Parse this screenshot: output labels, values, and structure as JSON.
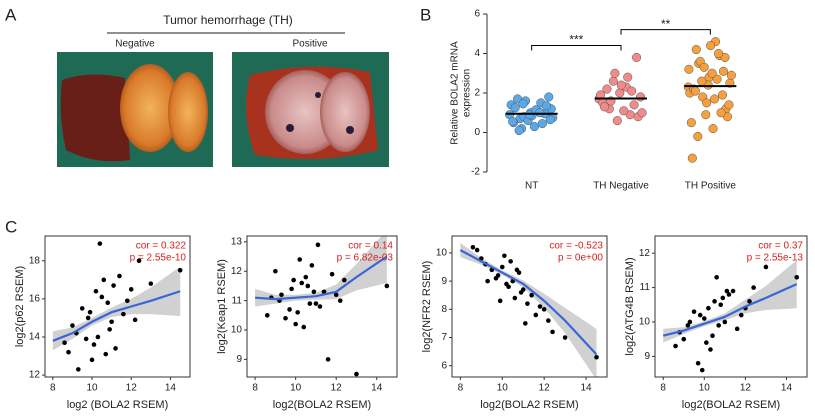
{
  "panels": {
    "a": {
      "label": "A",
      "title": "Tumor hemorrhage (TH)",
      "left": "Negative",
      "right": "Positive"
    },
    "b": {
      "label": "B"
    },
    "c": {
      "label": "C"
    }
  },
  "chart_data": [
    {
      "type": "dot",
      "categories": [
        "NT",
        "TH Negative",
        "TH Positive"
      ],
      "ylabel": [
        "Relative BOLA2 mRNA",
        "expression"
      ],
      "ylim": [
        -2,
        6
      ],
      "yticks": [
        -2,
        0,
        2,
        4,
        6
      ],
      "groups": [
        {
          "color": "#5ba8e8",
          "mean": 0.95,
          "values": [
            0.9,
            1.1,
            0.7,
            1.3,
            1.0,
            0.5,
            1.5,
            0.8,
            1.2,
            0.3,
            1.7,
            0.95,
            0.6,
            1.4,
            1.05,
            0.2,
            1.8,
            0.85,
            1.25,
            0.45,
            1.6,
            0.75,
            1.15,
            0.1,
            1.35,
            0.9,
            0.55,
            1.0,
            1.45,
            0.65
          ]
        },
        {
          "color": "#f28a8c",
          "mean": 1.72,
          "values": [
            1.7,
            2.3,
            1.2,
            3.8,
            2.0,
            1.5,
            0.9,
            2.6,
            1.8,
            1.1,
            2.2,
            1.4,
            0.6,
            1.9,
            2.8,
            1.6,
            0.8,
            2.4,
            1.3,
            2.1,
            3.0,
            1.0
          ]
        },
        {
          "color": "#f5a03c",
          "mean": 2.35,
          "values": [
            2.3,
            4.6,
            3.5,
            1.2,
            2.8,
            -1.3,
            3.9,
            1.8,
            2.5,
            0.2,
            4.2,
            3.1,
            1.5,
            2.0,
            2.7,
            3.6,
            0.8,
            4.4,
            2.2,
            1.0,
            3.3,
            2.9,
            1.7,
            -0.2,
            3.8,
            2.4,
            0.5,
            4.0,
            2.6,
            1.4,
            3.0,
            2.1,
            1.9,
            0.9,
            3.2
          ]
        }
      ],
      "comparisons": [
        {
          "from": 0,
          "to": 1,
          "text": "***"
        },
        {
          "from": 1,
          "to": 2,
          "text": "**"
        }
      ]
    },
    {
      "type": "scatter",
      "xlabel": "log2 (BOLA2 RSEM)",
      "ylabel": "log2(p62 RSEM)",
      "xlim": [
        7.6,
        15
      ],
      "xticks": [
        8,
        10,
        12,
        14
      ],
      "ylim": [
        11.9,
        19.3
      ],
      "yticks": [
        12,
        14,
        16,
        18
      ],
      "color": "#000000",
      "annotations": [
        "cor = 0.322",
        "p = 2.55e-10"
      ],
      "x": [
        9.2,
        9.8,
        10.1,
        10.5,
        11.0,
        11.4,
        8.8,
        9.5,
        10.3,
        10.8,
        11.2,
        12.0,
        9.0,
        10.0,
        10.6,
        11.6,
        12.4,
        9.7,
        10.2,
        10.9,
        8.6,
        11.8,
        13.0,
        14.5,
        10.4,
        9.3,
        11.1,
        10.7,
        12.2,
        9.9
      ],
      "values": [
        14.2,
        15.0,
        13.6,
        16.1,
        14.8,
        17.2,
        13.2,
        15.5,
        14.0,
        15.8,
        13.4,
        16.5,
        14.6,
        12.8,
        17.0,
        15.2,
        18.0,
        13.9,
        16.4,
        14.4,
        13.7,
        15.9,
        16.8,
        17.5,
        18.9,
        12.3,
        16.7,
        13.1,
        14.9,
        15.3
      ],
      "fit": {
        "color": "#3a65d6",
        "band_color": "#c9c9c9",
        "x": [
          8,
          9,
          10,
          11,
          12,
          13,
          14.5
        ],
        "values": [
          13.8,
          14.2,
          14.8,
          15.3,
          15.6,
          15.9,
          16.4
        ],
        "lower": [
          13.3,
          13.9,
          14.6,
          15.05,
          15.2,
          15.2,
          15.1
        ],
        "upper": [
          14.3,
          14.5,
          15.0,
          15.55,
          16.0,
          16.6,
          17.7
        ]
      }
    },
    {
      "type": "scatter",
      "xlabel": "log2(BOLA2 RSEM)",
      "ylabel": "log2(Keap1 RSEM)",
      "xlim": [
        7.6,
        15
      ],
      "xticks": [
        8,
        10,
        12,
        14
      ],
      "ylim": [
        8.4,
        13.2
      ],
      "yticks": [
        9,
        10,
        11,
        12,
        13
      ],
      "color": "#000000",
      "annotations": [
        "cor = 0.14",
        "p = 6.82e-03"
      ],
      "x": [
        9.2,
        9.8,
        10.1,
        10.5,
        11.0,
        11.4,
        8.8,
        9.5,
        10.3,
        10.8,
        11.2,
        12.0,
        9.0,
        10.0,
        10.6,
        11.6,
        12.4,
        9.7,
        10.2,
        10.9,
        8.6,
        11.8,
        13.0,
        14.5,
        10.4,
        9.3,
        11.1,
        10.7,
        12.2,
        9.9
      ],
      "values": [
        11.0,
        11.4,
        10.6,
        11.8,
        10.9,
        11.3,
        11.1,
        10.4,
        11.6,
        12.2,
        10.8,
        11.2,
        12.0,
        10.2,
        11.5,
        9.0,
        11.7,
        10.7,
        12.4,
        11.3,
        10.5,
        11.9,
        8.5,
        11.5,
        10.1,
        11.2,
        12.9,
        10.9,
        11.0,
        11.7
      ],
      "fit": {
        "color": "#3a65d6",
        "band_color": "#c9c9c9",
        "x": [
          8,
          9,
          10,
          11,
          12,
          13,
          14.5
        ],
        "values": [
          11.1,
          11.05,
          11.1,
          11.15,
          11.3,
          11.8,
          12.5
        ],
        "lower": [
          10.8,
          10.9,
          11.0,
          11.03,
          11.05,
          11.35,
          11.6
        ],
        "upper": [
          11.4,
          11.2,
          11.2,
          11.27,
          11.55,
          12.25,
          13.4
        ]
      }
    },
    {
      "type": "scatter",
      "xlabel": "log2(BOLA2 RSEM)",
      "ylabel": "log2(NFR2 RSEM)",
      "xlim": [
        7.6,
        15
      ],
      "xticks": [
        8,
        10,
        12,
        14
      ],
      "ylim": [
        5.6,
        10.6
      ],
      "yticks": [
        6,
        7,
        8,
        9,
        10
      ],
      "color": "#000000",
      "annotations": [
        "cor = -0.523",
        "p = 0e+00"
      ],
      "x": [
        9.2,
        9.8,
        10.1,
        10.5,
        11.0,
        11.4,
        8.8,
        9.5,
        10.3,
        10.8,
        11.2,
        12.0,
        9.0,
        10.0,
        10.6,
        11.6,
        12.4,
        9.7,
        10.2,
        10.9,
        8.6,
        11.8,
        13.0,
        14.5,
        10.4,
        9.3,
        11.1,
        10.7,
        12.2,
        9.9
      ],
      "values": [
        9.6,
        9.2,
        9.9,
        9.0,
        8.7,
        8.5,
        10.1,
        9.4,
        8.8,
        9.3,
        8.2,
        8.0,
        9.8,
        9.5,
        8.4,
        7.8,
        7.2,
        9.1,
        8.9,
        8.6,
        10.2,
        8.1,
        7.0,
        6.3,
        9.7,
        9.0,
        7.5,
        9.4,
        7.6,
        8.3
      ],
      "fit": {
        "color": "#3a65d6",
        "band_color": "#c9c9c9",
        "x": [
          8,
          9,
          10,
          11,
          12,
          13,
          14.5
        ],
        "values": [
          10.1,
          9.7,
          9.3,
          8.9,
          8.3,
          7.6,
          6.4
        ],
        "lower": [
          9.85,
          9.58,
          9.22,
          8.78,
          8.05,
          7.15,
          5.5
        ],
        "upper": [
          10.35,
          9.82,
          9.38,
          9.02,
          8.55,
          8.05,
          7.3
        ]
      }
    },
    {
      "type": "scatter",
      "xlabel": "log2(BOLA2 RSEM)",
      "ylabel": "log2(ATG4B RSEM)",
      "xlim": [
        7.6,
        15
      ],
      "xticks": [
        8,
        10,
        12,
        14
      ],
      "ylim": [
        8.4,
        12.5
      ],
      "yticks": [
        9,
        10,
        11,
        12
      ],
      "color": "#000000",
      "annotations": [
        "cor = 0.37",
        "p = 2.55e-13"
      ],
      "x": [
        9.2,
        9.8,
        10.1,
        10.5,
        11.0,
        11.4,
        8.8,
        9.5,
        10.3,
        10.8,
        11.2,
        12.0,
        9.0,
        10.0,
        10.6,
        11.6,
        12.4,
        9.7,
        10.2,
        10.9,
        8.6,
        11.8,
        13.0,
        14.5,
        10.4,
        9.3,
        11.1,
        10.7,
        12.2,
        9.9
      ],
      "values": [
        9.9,
        10.2,
        9.4,
        10.6,
        10.0,
        10.9,
        9.7,
        10.3,
        9.2,
        10.5,
        10.8,
        10.4,
        9.5,
        10.1,
        11.3,
        9.8,
        11.0,
        8.8,
        10.4,
        10.7,
        9.3,
        10.2,
        11.6,
        11.3,
        9.6,
        10.0,
        10.9,
        9.9,
        10.6,
        8.6
      ],
      "fit": {
        "color": "#3a65d6",
        "band_color": "#c9c9c9",
        "x": [
          8,
          9,
          10,
          11,
          12,
          13,
          14.5
        ],
        "values": [
          9.6,
          9.75,
          9.95,
          10.15,
          10.45,
          10.7,
          11.1
        ],
        "lower": [
          9.4,
          9.65,
          9.88,
          10.05,
          10.25,
          10.35,
          10.4
        ],
        "upper": [
          9.8,
          9.85,
          10.02,
          10.25,
          10.65,
          11.05,
          11.8
        ]
      }
    }
  ]
}
